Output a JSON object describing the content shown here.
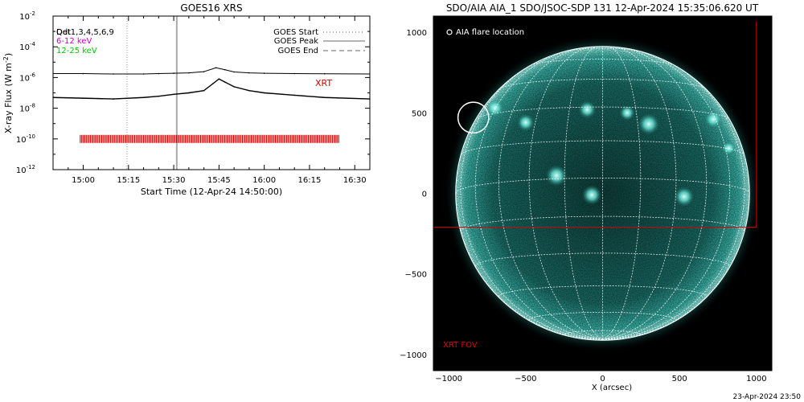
{
  "chart_data": [
    {
      "type": "line",
      "title": "GOES16 XRS",
      "xlabel": "Start Time (12-Apr-24 14:50:00)",
      "ylabel": "X-ray Flux (W m",
      "ylabel_sup": "-2",
      "ylabel_close": ")",
      "y_scale": "log",
      "ylim": [
        1e-12,
        0.01
      ],
      "y_ticks": [
        {
          "value": 0.01,
          "base": "10",
          "exp": "-2"
        },
        {
          "value": 0.0001,
          "base": "10",
          "exp": "-4"
        },
        {
          "value": 1e-06,
          "base": "10",
          "exp": "-6"
        },
        {
          "value": 1e-08,
          "base": "10",
          "exp": "-8"
        },
        {
          "value": 1e-10,
          "base": "10",
          "exp": "-10"
        },
        {
          "value": 1e-12,
          "base": "10",
          "exp": "-12"
        }
      ],
      "x_ticks": [
        "15:00",
        "15:15",
        "15:30",
        "15:45",
        "16:00",
        "16:15",
        "16:30"
      ],
      "x_range_minutes": [
        0,
        105
      ],
      "x_tick_minutes": [
        10,
        25,
        40,
        55,
        70,
        85,
        100
      ],
      "legend_top_left": [
        {
          "label": "Det1,3,4,5,6,9",
          "color": "#000000"
        },
        {
          "label": "6-12 keV",
          "color": "#cc00cc"
        },
        {
          "label": "12-25 keV",
          "color": "#00cc00"
        }
      ],
      "overlay_text": {
        "label": "Qdt",
        "color": "#000000"
      },
      "legend_top_right": [
        {
          "label": "GOES Start",
          "style": "dotted"
        },
        {
          "label": "GOES Peak",
          "style": "solid"
        },
        {
          "label": "GOES End",
          "style": "dashed"
        }
      ],
      "annotation": {
        "label": "XRT",
        "color": "#dd0000"
      },
      "series": [
        {
          "name": "",
          "color": "#000000",
          "x": [
            0,
            10,
            20,
            30,
            35,
            40,
            45,
            50,
            54,
            57,
            60,
            65,
            70,
            80,
            90,
            105
          ],
          "y": [
            1.8e-06,
            1.8e-06,
            1.7e-06,
            1.7e-06,
            1.8e-06,
            1.9e-06,
            2e-06,
            2.4e-06,
            4.3e-06,
            3.2e-06,
            2.3e-06,
            2e-06,
            1.9e-06,
            1.8e-06,
            1.75e-06,
            1.7e-06
          ]
        },
        {
          "name": "",
          "color": "#000000",
          "x": [
            0,
            10,
            20,
            30,
            35,
            40,
            45,
            50,
            53,
            55,
            57,
            60,
            65,
            70,
            80,
            90,
            105
          ],
          "y": [
            5e-08,
            4.5e-08,
            4e-08,
            5e-08,
            6e-08,
            8e-08,
            1e-07,
            1.4e-07,
            4e-07,
            8e-07,
            5e-07,
            2.5e-07,
            1.4e-07,
            1e-07,
            7e-08,
            5e-08,
            4e-08
          ]
        }
      ],
      "markers": {
        "start_minute": 24.5,
        "peak_minute": 41,
        "color_start": "#999999",
        "color_peak": "#aaaaaa"
      },
      "xrt_observations": {
        "color": "#dd0000",
        "y_value": 1e-10,
        "start_minute": 9,
        "end_minute": 95
      }
    },
    {
      "type": "image",
      "title": "SDO/AIA AIA_1 SDO/JSOC-SDP 131 12-Apr-2024 15:35:06.620 UT",
      "xlabel": "X (arcsec)",
      "xlim": [
        -1100,
        1100
      ],
      "ylim": [
        -1100,
        1100
      ],
      "x_ticks": [
        -1000,
        -500,
        0,
        500,
        1000
      ],
      "y_ticks": [
        -1000,
        -500,
        0,
        500,
        1000
      ],
      "tick_labels_x": [
        "−1000",
        "−500",
        "0",
        "500",
        "1000"
      ],
      "tick_labels_y": [
        "−1000",
        "−500",
        "0",
        "500",
        "1000"
      ],
      "solar_radius_arcsec": 955,
      "legend": {
        "label": "AIA flare location",
        "color": "#ffffff"
      },
      "flare_location": {
        "x": -840,
        "y": 470,
        "radius_arcsec": 100
      },
      "xrt_fov": {
        "label": "XRT FOV",
        "color": "#dd0000",
        "x": [
          -1100,
          1000
        ],
        "y": [
          -210,
          1100
        ]
      },
      "colors": {
        "background": "#000000",
        "disk": "#1f8f87",
        "limb": "#8ff0e6",
        "grid": "#ffffff"
      },
      "active_regions": [
        {
          "x": -700,
          "y": 530
        },
        {
          "x": -500,
          "y": 440
        },
        {
          "x": -100,
          "y": 520
        },
        {
          "x": 160,
          "y": 500
        },
        {
          "x": 300,
          "y": 430
        },
        {
          "x": 720,
          "y": 460
        },
        {
          "x": -70,
          "y": -10
        },
        {
          "x": 530,
          "y": -20
        },
        {
          "x": -300,
          "y": 110
        },
        {
          "x": 820,
          "y": 280
        }
      ]
    }
  ],
  "footer_timestamp": "23-Apr-2024 23:50"
}
